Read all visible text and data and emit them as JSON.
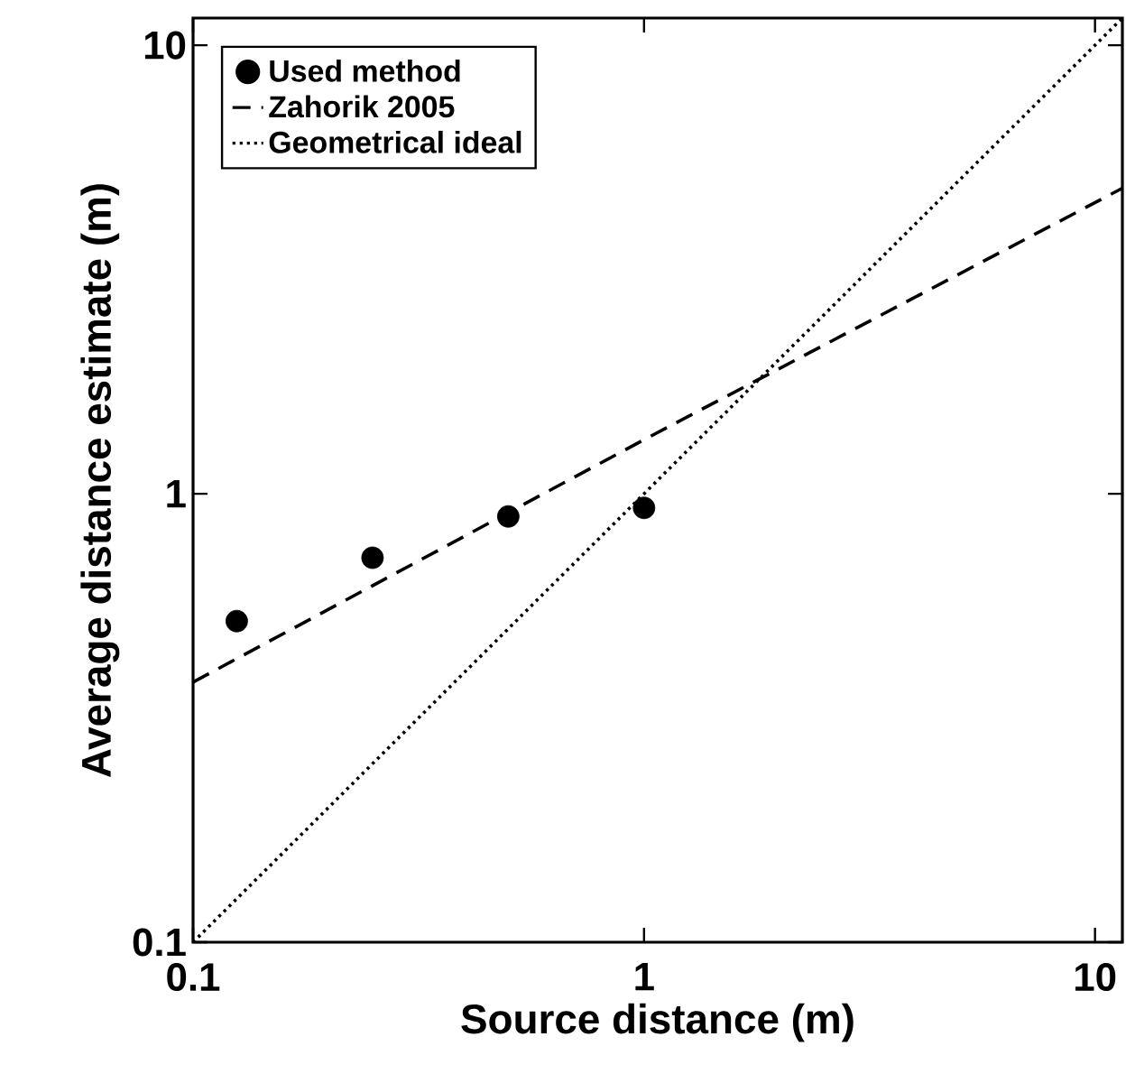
{
  "chart_data": {
    "type": "scatter",
    "xlabel": "Source distance (m)",
    "ylabel": "Average distance estimate (m)",
    "log": "xy",
    "xlim": [
      0.1,
      11.5
    ],
    "ylim": [
      0.1,
      11.5
    ],
    "xticks": [
      0.1,
      1,
      10
    ],
    "yticks": [
      0.1,
      1,
      10
    ],
    "grid": false,
    "legend": "top left",
    "series": [
      {
        "name": "Used method",
        "marker": "circle",
        "color": "#000000",
        "x": [
          0.125,
          0.25,
          0.5,
          1
        ],
        "values": [
          0.52,
          0.72,
          0.89,
          0.93
        ]
      },
      {
        "name": "Zahorik 2005",
        "type": "line",
        "line_style": "dashed",
        "marker": "none",
        "color": "#000000",
        "x": [
          0.1,
          1,
          11.5
        ],
        "values": [
          0.38,
          1.32,
          4.8
        ]
      },
      {
        "name": "Geometrical ideal",
        "type": "line",
        "line_style": "dotted",
        "marker": "none",
        "color": "#000000",
        "x": [
          0.1,
          11.5
        ],
        "values": [
          0.1,
          11.5
        ]
      }
    ]
  }
}
